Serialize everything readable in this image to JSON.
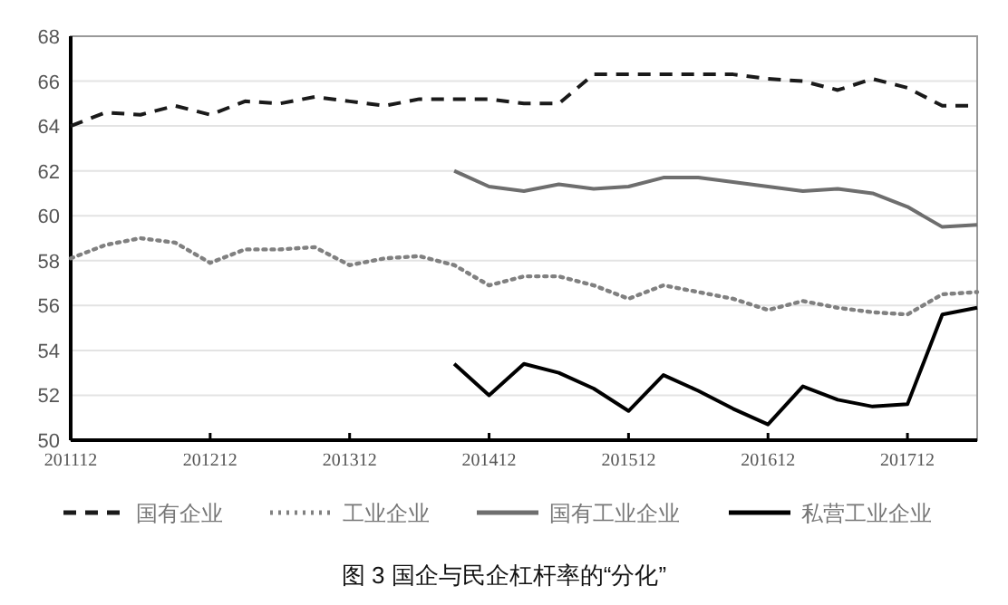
{
  "chart_data": {
    "type": "line",
    "title": "图 3 国企与民企杠杆率的“分化”",
    "x": [
      "2011-12",
      "2012-03",
      "2012-06",
      "2012-09",
      "2012-12",
      "2013-03",
      "2013-06",
      "2013-09",
      "2013-12",
      "2014-03",
      "2014-06",
      "2014-09",
      "2014-12",
      "2015-03",
      "2015-06",
      "2015-09",
      "2015-12",
      "2016-03",
      "2016-06",
      "2016-09",
      "2016-12",
      "2017-03",
      "2017-06",
      "2017-09",
      "2017-12",
      "2018-03",
      "2018-06"
    ],
    "series": [
      {
        "name": "国有企业",
        "color": "#1a1a1a",
        "line_style": "dashed",
        "values": [
          64.0,
          64.6,
          64.5,
          64.9,
          64.5,
          65.1,
          65.0,
          65.3,
          65.1,
          64.9,
          65.2,
          65.2,
          65.2,
          65.0,
          65.0,
          66.3,
          66.3,
          66.3,
          66.3,
          66.3,
          66.1,
          66.0,
          65.6,
          66.1,
          65.7,
          64.9,
          64.9
        ]
      },
      {
        "name": "工业企业",
        "color": "#808080",
        "line_style": "dotted",
        "values": [
          58.1,
          58.7,
          59.0,
          58.8,
          57.9,
          58.5,
          58.5,
          58.6,
          57.8,
          58.1,
          58.2,
          57.8,
          56.9,
          57.3,
          57.3,
          56.9,
          56.3,
          56.9,
          56.6,
          56.3,
          55.8,
          56.2,
          55.9,
          55.7,
          55.6,
          56.5,
          56.6
        ]
      },
      {
        "name": "国有工业企业",
        "color": "#6e6e6e",
        "line_style": "solid",
        "values": [
          null,
          null,
          null,
          null,
          null,
          null,
          null,
          null,
          null,
          null,
          null,
          62.0,
          61.3,
          61.1,
          61.4,
          61.2,
          61.3,
          61.7,
          61.7,
          61.5,
          61.3,
          61.1,
          61.2,
          61.0,
          60.4,
          59.5,
          59.6
        ]
      },
      {
        "name": "私营工业企业",
        "color": "#000000",
        "line_style": "solid",
        "values": [
          null,
          null,
          null,
          null,
          null,
          null,
          null,
          null,
          null,
          null,
          null,
          53.4,
          52.0,
          53.4,
          53.0,
          52.3,
          51.3,
          52.9,
          52.2,
          51.4,
          50.7,
          52.4,
          51.8,
          51.5,
          51.6,
          55.6,
          55.9
        ]
      }
    ],
    "xlim": [
      "2011-12",
      "2018-06"
    ],
    "xticks": [
      {
        "value": "2011-12",
        "label": "201112"
      },
      {
        "value": "2012-12",
        "label": "201212"
      },
      {
        "value": "2013-12",
        "label": "201312"
      },
      {
        "value": "2014-12",
        "label": "201412"
      },
      {
        "value": "2015-12",
        "label": "201512"
      },
      {
        "value": "2016-12",
        "label": "201612"
      },
      {
        "value": "2017-12",
        "label": "201712"
      }
    ],
    "ylim": [
      50,
      68
    ],
    "yticks": [
      50,
      52,
      54,
      56,
      58,
      60,
      62,
      64,
      66,
      68
    ],
    "grid": "y",
    "legend": "bottom"
  }
}
